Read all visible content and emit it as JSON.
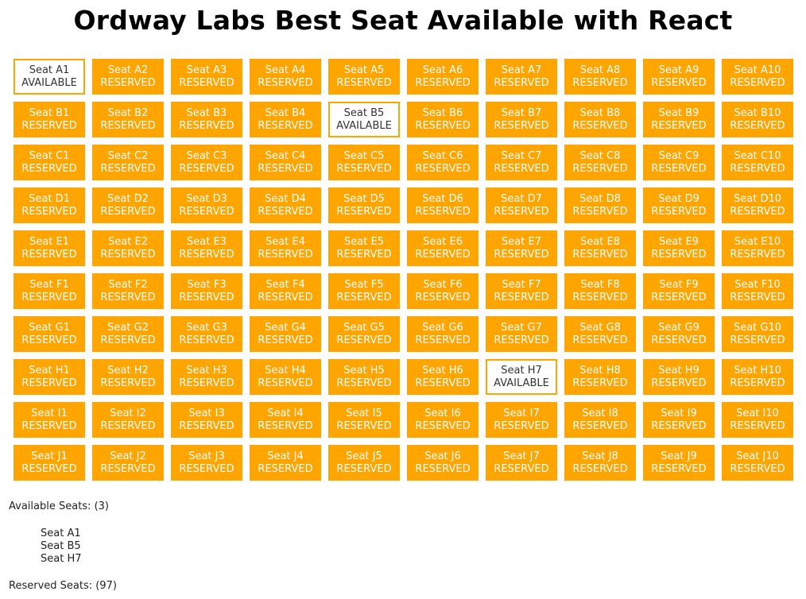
{
  "title": "Ordway Labs Best Seat Available with React",
  "seat_prefix": "Seat",
  "status_labels": {
    "available": "AVAILABLE",
    "reserved": "RESERVED"
  },
  "rows": [
    "A",
    "B",
    "C",
    "D",
    "E",
    "F",
    "G",
    "H",
    "I",
    "J"
  ],
  "columns": [
    1,
    2,
    3,
    4,
    5,
    6,
    7,
    8,
    9,
    10
  ],
  "available_seats": [
    "A1",
    "B5",
    "H7"
  ],
  "colors": {
    "reserved": "#ffa500",
    "available_bg": "#ffffff",
    "border": "#ffa500"
  },
  "summary": {
    "available_label": "Available Seats: (3)",
    "available_list": [
      "Seat A1",
      "Seat B5",
      "Seat H7"
    ],
    "reserved_label": "Reserved Seats: (97)"
  }
}
